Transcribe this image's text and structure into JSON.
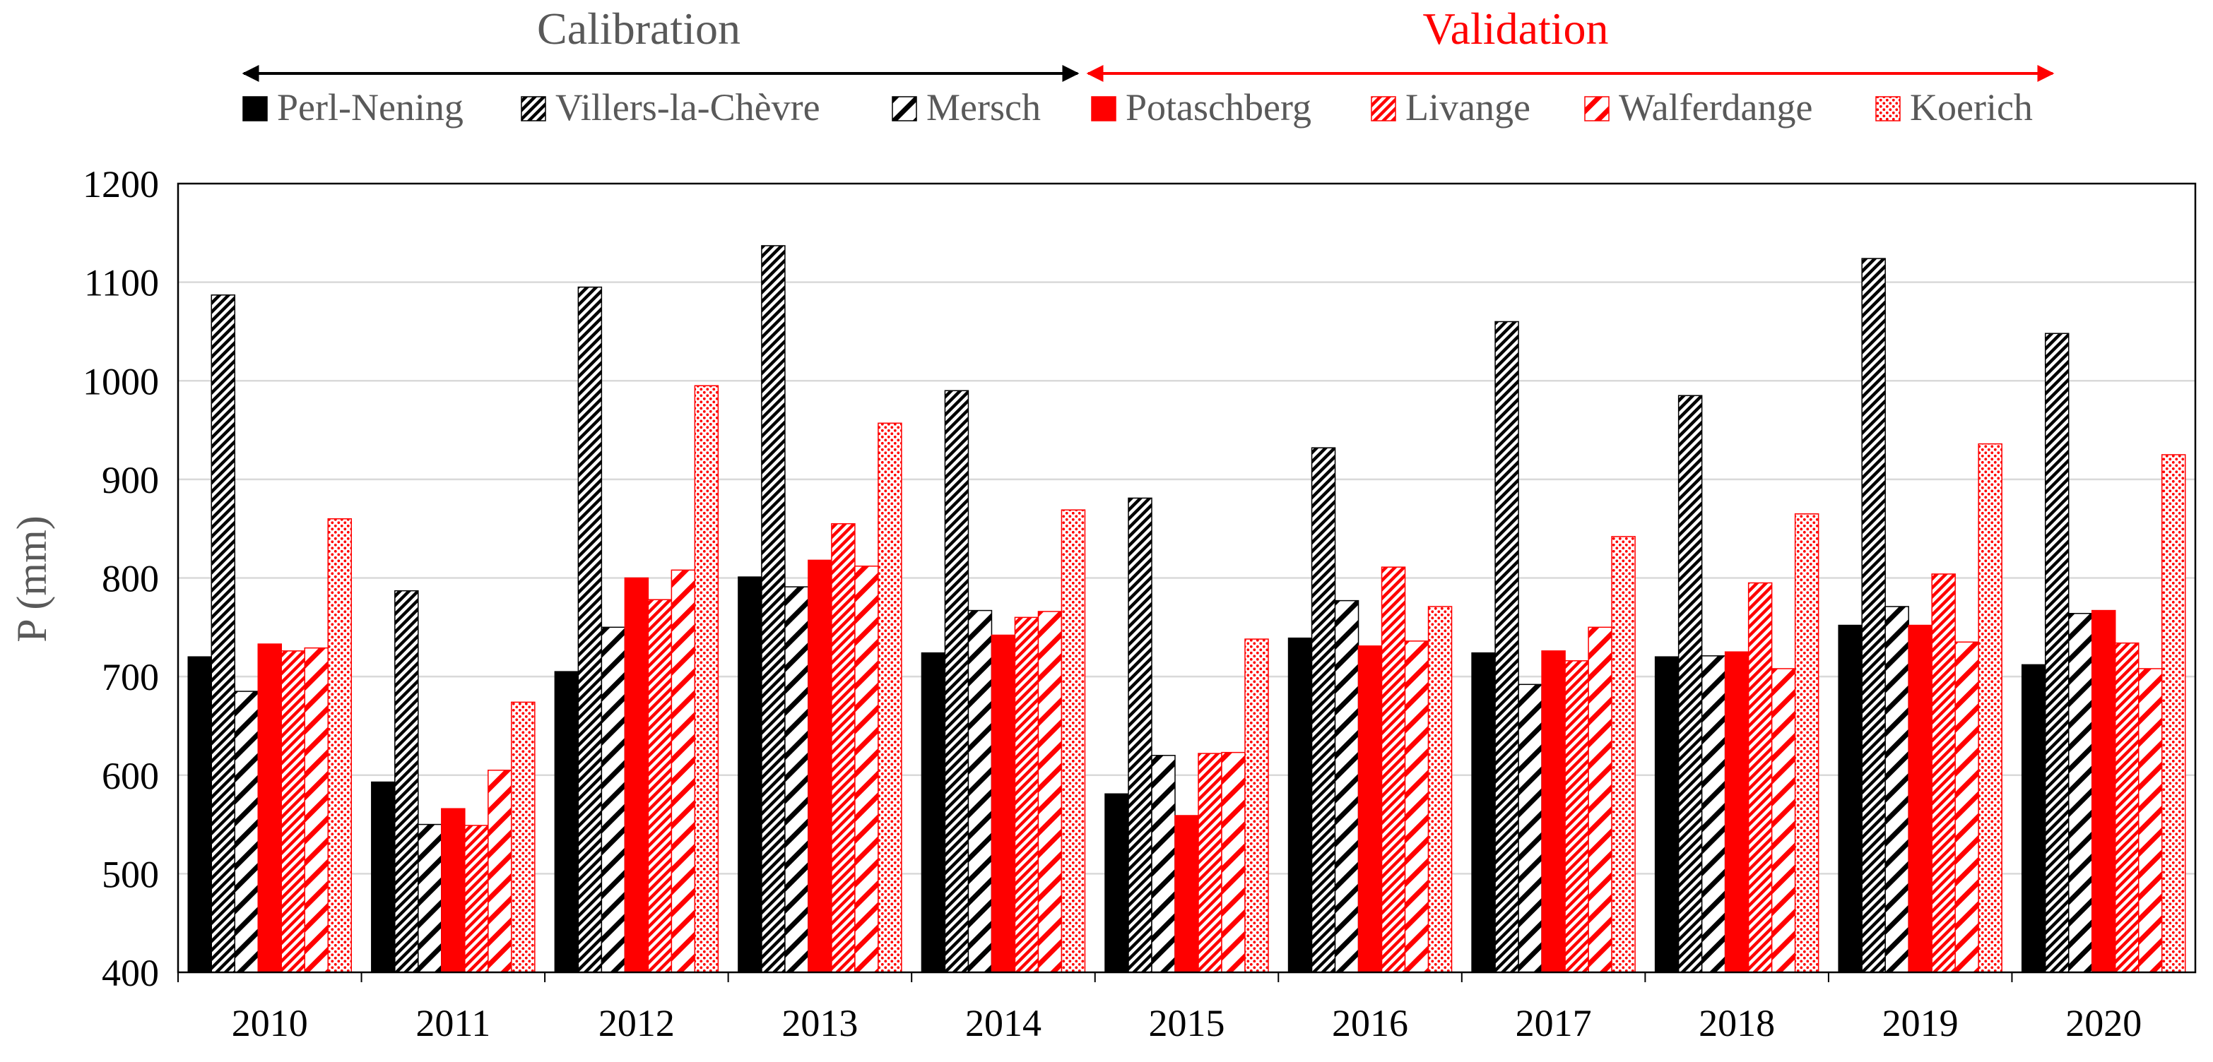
{
  "chart_data": {
    "type": "bar",
    "title": "",
    "xlabel": "",
    "ylabel": "P (mm)",
    "ylim": [
      400,
      1200
    ],
    "yticks": [
      "400",
      "500",
      "600",
      "700",
      "800",
      "900",
      "1000",
      "1100",
      "1200"
    ],
    "grid": true,
    "categories": [
      "2010",
      "2011",
      "2012",
      "2013",
      "2014",
      "2015",
      "2016",
      "2017",
      "2018",
      "2019",
      "2020"
    ],
    "periods": [
      {
        "label": "Calibration",
        "color": "#000000",
        "text_color": "#595959"
      },
      {
        "label": "Validation",
        "color": "#ff0000",
        "text_color": "#ff0000"
      }
    ],
    "series": [
      {
        "name": "Perl-Nening",
        "group": "Calibration",
        "color": "#000000",
        "pattern": "solid",
        "values": [
          720,
          593,
          705,
          801,
          724,
          581,
          739,
          724,
          720,
          752,
          712
        ]
      },
      {
        "name": "Villers-la-Chèvre",
        "group": "Calibration",
        "color": "#000000",
        "pattern": "dense-diagonal",
        "values": [
          1087,
          787,
          1095,
          1137,
          990,
          881,
          932,
          1060,
          985,
          1124,
          1048
        ]
      },
      {
        "name": "Mersch",
        "group": "Calibration",
        "color": "#000000",
        "pattern": "wide-diagonal",
        "values": [
          685,
          550,
          750,
          791,
          767,
          620,
          777,
          692,
          721,
          771,
          764
        ]
      },
      {
        "name": "Potaschberg",
        "group": "Validation",
        "color": "#ff0000",
        "pattern": "solid",
        "values": [
          733,
          566,
          800,
          818,
          742,
          559,
          731,
          726,
          725,
          752,
          767
        ]
      },
      {
        "name": "Livange",
        "group": "Validation",
        "color": "#ff0000",
        "pattern": "dense-diagonal",
        "values": [
          726,
          549,
          778,
          855,
          760,
          622,
          811,
          716,
          795,
          804,
          734
        ]
      },
      {
        "name": "Walferdange",
        "group": "Validation",
        "color": "#ff0000",
        "pattern": "wide-diagonal",
        "values": [
          729,
          605,
          808,
          812,
          766,
          623,
          736,
          750,
          708,
          735,
          708
        ]
      },
      {
        "name": "Koerich",
        "group": "Validation",
        "color": "#ff0000",
        "pattern": "dots",
        "values": [
          860,
          674,
          995,
          957,
          869,
          738,
          771,
          842,
          865,
          936,
          925
        ]
      }
    ]
  }
}
